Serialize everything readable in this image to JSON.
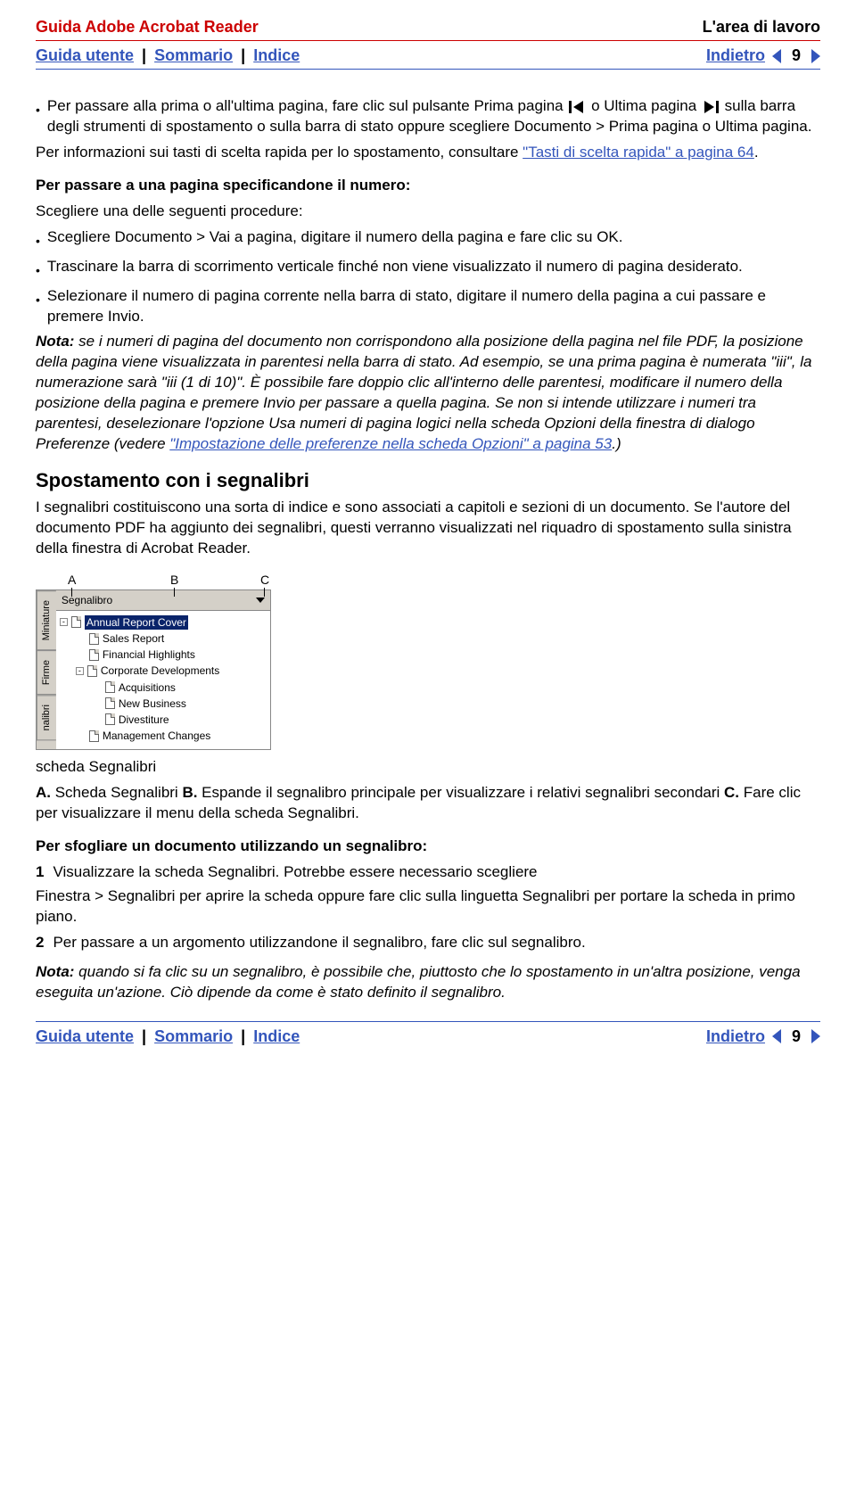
{
  "header": {
    "left": "Guida Adobe Acrobat Reader",
    "right": "L'area di lavoro"
  },
  "nav": {
    "guide": "Guida utente",
    "sep": "|",
    "contents": "Sommario",
    "index": "Indice",
    "back": "Indietro",
    "page": "9"
  },
  "body": {
    "bullet0": "Per passare alla prima o all'ultima pagina, fare clic sul pulsante Prima pagina ",
    "bullet0b": " o Ultima pagina ",
    "bullet0c": " sulla barra degli strumenti di spostamento o sulla barra di stato oppure scegliere Documento > Prima pagina o Ultima pagina.",
    "para1a": "Per informazioni sui tasti di scelta rapida per lo spostamento, consultare ",
    "para1link": "\"Tasti di scelta rapida\" a pagina 64",
    "para1b": ".",
    "h_sub1": "Per passare a una pagina specificandone il numero:",
    "para2": "Scegliere una delle seguenti procedure:",
    "b1": "Scegliere Documento > Vai a pagina, digitare il numero della pagina e fare clic su OK.",
    "b2": "Trascinare la barra di scorrimento verticale finché non viene visualizzato il numero di pagina desiderato.",
    "b3": "Selezionare il numero di pagina corrente nella barra di stato, digitare il numero della pagina a cui passare e premere Invio.",
    "note1_label": "Nota:",
    "note1a": " se i numeri di pagina del documento non corrispondono alla posizione della pagina nel file PDF, la posizione della pagina viene visualizzata in parentesi nella barra di stato. Ad esempio, se una prima pagina è numerata \"iii\", la numerazione sarà \"iii (1 di 10)\". È possibile fare doppio clic all'interno delle parentesi, modificare il numero della posizione della pagina e premere Invio per passare a quella pagina. Se non si intende utilizzare i numeri tra parentesi, deselezionare l'opzione Usa numeri di pagina logici nella scheda Opzioni della finestra di dialogo Preferenze ",
    "note1b_prefix": "(vedere ",
    "note1_link": "\"Impostazione delle preferenze nella scheda Opzioni\" a pagina 53",
    "note1c": ".)",
    "h2": "Spostamento con i segnalibri",
    "para3": "I segnalibri costituiscono una sorta di indice e sono associati a capitoli e sezioni di un documento. Se l'autore del documento PDF ha aggiunto dei segnalibri, questi verranno visualizzati nel riquadro di spostamento sulla sinistra della finestra di Acrobat Reader."
  },
  "panel": {
    "callA": "A",
    "callB": "B",
    "callC": "C",
    "title": "Segnalibro",
    "tabs": [
      "Miniature",
      "Firme",
      "nalibri"
    ],
    "items": [
      {
        "label": "Annual Report Cover",
        "selected": true,
        "toggle": "-",
        "indent": 0
      },
      {
        "label": "Sales Report",
        "indent": 1
      },
      {
        "label": "Financial Highlights",
        "indent": 1
      },
      {
        "label": "Corporate Developments",
        "toggle": "-",
        "indent": 1
      },
      {
        "label": "Acquisitions",
        "indent": 2
      },
      {
        "label": "New Business",
        "indent": 2
      },
      {
        "label": "Divestiture",
        "indent": 2
      },
      {
        "label": "Management Changes",
        "indent": 1
      }
    ]
  },
  "caption": {
    "line0": "scheda Segnalibri",
    "A": "A.",
    "Atext": " Scheda Segnalibri  ",
    "B": "B.",
    "Btext": " Espande il segnalibro principale per visualizzare i relativi segnalibri secondari  ",
    "C": "C.",
    "Ctext": " Fare clic per visualizzare il menu della scheda Segnalibri."
  },
  "section2": {
    "h": "Per sfogliare un documento utilizzando un segnalibro:",
    "s1n": "1",
    "s1": "Visualizzare la scheda Segnalibri. Potrebbe essere necessario scegliere",
    "s1b": "Finestra > Segnalibri per aprire la scheda oppure fare clic sulla linguetta Segnalibri per portare la scheda in primo piano.",
    "s2n": "2",
    "s2": "Per passare a un argomento utilizzandone il segnalibro, fare clic sul segnalibro.",
    "note_label": "Nota:",
    "note": " quando si fa clic su un segnalibro, è possibile che, piuttosto che lo spostamento in un'altra posizione, venga eseguita un'azione. Ciò dipende da come è stato definito il segnalibro."
  }
}
